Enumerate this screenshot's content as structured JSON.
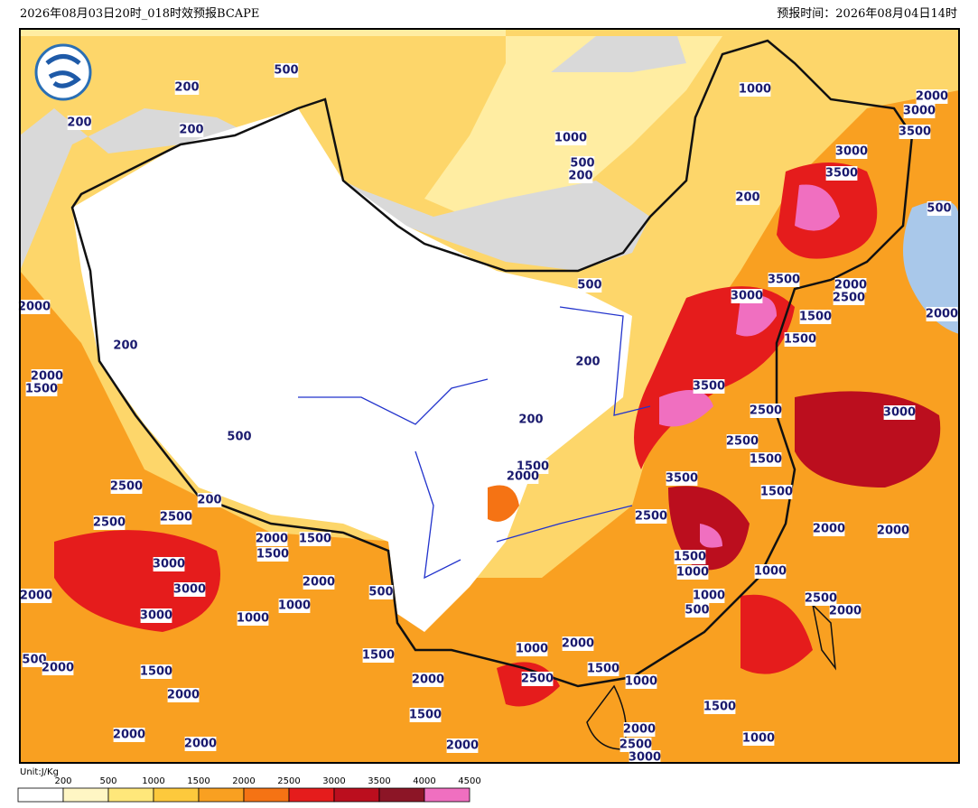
{
  "header": {
    "title": "2026年08月03日20时_018时效预报BCAPE",
    "forecast_time": "预报时间：2026年08月04日14时"
  },
  "legend": {
    "unit": "Unit:J/Kg",
    "levels": [
      200,
      500,
      1000,
      1500,
      2000,
      2500,
      3000,
      3500,
      4000,
      4500
    ],
    "colors": [
      "#ffffff",
      "#fff6c4",
      "#ffe77a",
      "#fdc93c",
      "#f9a021",
      "#f57314",
      "#e51c1c",
      "#bb0e1e",
      "#8c1526",
      "#f06fc0"
    ]
  },
  "contour_labels": [
    500,
    200,
    200,
    200,
    1000,
    2000,
    3000,
    3500,
    1000,
    3000,
    500,
    200,
    3500,
    200,
    500,
    500,
    3500,
    2000,
    3000,
    2500,
    2000,
    1500,
    2000,
    200,
    1500,
    200,
    2000,
    1500,
    3500,
    2500,
    3000,
    200,
    500,
    2500,
    1500,
    1500,
    2000,
    3500,
    1500,
    2500,
    200,
    2500,
    2500,
    2500,
    2000,
    2000,
    2000,
    1500,
    1500,
    3000,
    1500,
    1000,
    1000,
    2000,
    3000,
    2000,
    1000,
    2500,
    2000,
    500,
    1000,
    500,
    3000,
    1000,
    2000,
    1500,
    1000,
    1500,
    500,
    2000,
    1500,
    2000,
    2500,
    1000,
    2000,
    1500,
    1500,
    2000,
    2000,
    2000,
    2000,
    1000,
    2500,
    3000
  ]
}
